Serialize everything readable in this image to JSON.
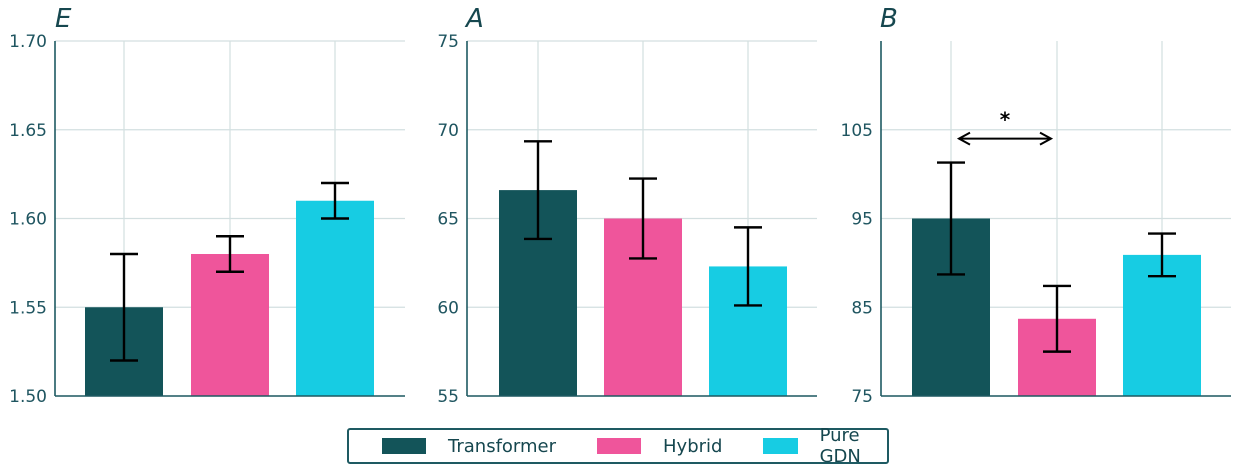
{
  "colors": {
    "Transformer": "#135459",
    "Hybrid": "#ef559b",
    "Pure GDN": "#17cce3",
    "axis": "#1e5a62",
    "grid": "#d3dfe0",
    "errorbar": "#000000"
  },
  "legend": {
    "placement": "bottom-center",
    "items": [
      {
        "label": "Transformer",
        "color": "#135459"
      },
      {
        "label": "Hybrid",
        "color": "#ef559b"
      },
      {
        "label": "Pure GDN",
        "color": "#17cce3"
      }
    ]
  },
  "chart_data": [
    {
      "type": "bar",
      "title": "E",
      "categories": [
        "Transformer",
        "Hybrid",
        "Pure GDN"
      ],
      "values": [
        1.55,
        1.58,
        1.61
      ],
      "errors": [
        0.03,
        0.01,
        0.01
      ],
      "ylim": [
        1.5,
        1.7
      ],
      "yticks": [
        1.5,
        1.55,
        1.6,
        1.65,
        1.7
      ],
      "ytick_labels": [
        "1.50",
        "1.55",
        "1.60",
        "1.65",
        "1.70"
      ],
      "grid": true,
      "annotations": []
    },
    {
      "type": "bar",
      "title": "A",
      "categories": [
        "Transformer",
        "Hybrid",
        "Pure GDN"
      ],
      "values": [
        66.6,
        65.0,
        62.3
      ],
      "errors": [
        2.75,
        2.25,
        2.2
      ],
      "ylim": [
        55,
        75
      ],
      "yticks": [
        55,
        60,
        65,
        70,
        75
      ],
      "ytick_labels": [
        "55",
        "60",
        "65",
        "70",
        "75"
      ],
      "grid": true,
      "annotations": []
    },
    {
      "type": "bar",
      "title": "B",
      "categories": [
        "Transformer",
        "Hybrid",
        "Pure GDN"
      ],
      "values": [
        95.0,
        83.7,
        90.9
      ],
      "errors": [
        6.3,
        3.7,
        2.4
      ],
      "ylim": [
        75,
        115
      ],
      "yticks": [
        75,
        85,
        95,
        105
      ],
      "ytick_labels": [
        "75",
        "85",
        "95",
        "105"
      ],
      "grid": true,
      "annotations": [
        {
          "type": "significance",
          "label": "*",
          "between": [
            "Transformer",
            "Hybrid"
          ],
          "y": 104.0
        }
      ]
    }
  ]
}
